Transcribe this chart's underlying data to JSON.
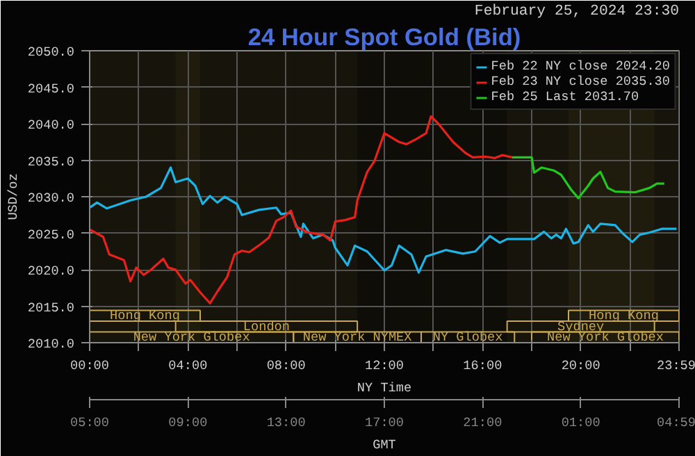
{
  "chart_data": {
    "type": "line",
    "title": "24 Hour Spot Gold (Bid)",
    "subtitle": "February 25, 2024 23:30",
    "xlabel": "NY Time",
    "x2label": "GMT",
    "ylabel": "USD/oz",
    "xlim": [
      0,
      24
    ],
    "xticks": [
      {
        "value": 0,
        "label": "00:00"
      },
      {
        "value": 2,
        "label": null
      },
      {
        "value": 4,
        "label": "04:00"
      },
      {
        "value": 6,
        "label": null
      },
      {
        "value": 8,
        "label": "08:00"
      },
      {
        "value": 10,
        "label": null
      },
      {
        "value": 12,
        "label": "12:00"
      },
      {
        "value": 14,
        "label": null
      },
      {
        "value": 16,
        "label": "16:00"
      },
      {
        "value": 18,
        "label": null
      },
      {
        "value": 20,
        "label": "20:00"
      },
      {
        "value": 22,
        "label": null
      },
      {
        "value": 23.983,
        "label": "23:59"
      }
    ],
    "x2lim": [
      "2024-02-25T05:00",
      "2024-02-26T05:00"
    ],
    "x2ticks": [
      {
        "value": "2024-02-25T05:00",
        "label": "05:00"
      },
      {
        "value": "2024-02-25T09:00",
        "label": "09:00"
      },
      {
        "value": "2024-02-25T13:00",
        "label": "13:00"
      },
      {
        "value": "2024-02-25T17:00",
        "label": "17:00"
      },
      {
        "value": "2024-02-25T21:00",
        "label": "21:00"
      },
      {
        "value": "2024-02-26T01:00",
        "label": "01:00"
      },
      {
        "value": "2024-02-26T04:59",
        "label": "04:59"
      }
    ],
    "ylim": [
      2010,
      2050
    ],
    "yticks": [
      {
        "value": 2010,
        "label": "2010.0"
      },
      {
        "value": 2015,
        "label": "2015.0"
      },
      {
        "value": 2020,
        "label": "2020.0"
      },
      {
        "value": 2025,
        "label": "2025.0"
      },
      {
        "value": 2030,
        "label": "2030.0"
      },
      {
        "value": 2035,
        "label": "2035.0"
      },
      {
        "value": 2040,
        "label": "2040.0"
      },
      {
        "value": 2045,
        "label": "2045.0"
      },
      {
        "value": 2050,
        "label": "2050.0"
      }
    ],
    "grid": true,
    "legend": "top right",
    "marker": "none",
    "line_style": "solid",
    "series": [
      {
        "name": "Feb 22 NY close 2024.20",
        "color": "#1eb4e6",
        "x": [
          0,
          0.3,
          0.7,
          1.66,
          2.3,
          2.9,
          3.3,
          3.5,
          4.0,
          4.3,
          4.6,
          4.9,
          5.2,
          5.5,
          6.0,
          6.2,
          6.9,
          7.6,
          7.8,
          8.2,
          8.6,
          8.7,
          9.1,
          9.5,
          9.9,
          10.0,
          10.5,
          10.8,
          11.3,
          12.0,
          12.3,
          12.6,
          13.1,
          13.4,
          13.7,
          14.5,
          15.2,
          15.7,
          16.3,
          16.7,
          17.0,
          18.1,
          18.5,
          18.8,
          19.0,
          19.2,
          19.4,
          19.7,
          19.9,
          20.3,
          20.5,
          20.8,
          21.4,
          21.7,
          22.1,
          22.4,
          22.8,
          23.3,
          23.9
        ],
        "values": [
          2028.5,
          2029.2,
          2028.4,
          2029.5,
          2030.0,
          2031.2,
          2034.0,
          2032.0,
          2032.5,
          2031.5,
          2029.0,
          2030.1,
          2029.2,
          2030.0,
          2029.0,
          2027.5,
          2028.2,
          2028.5,
          2027.6,
          2027.8,
          2024.5,
          2026.3,
          2024.3,
          2024.8,
          2024.0,
          2023.0,
          2020.6,
          2023.3,
          2022.5,
          2019.9,
          2020.6,
          2023.3,
          2022.1,
          2019.6,
          2021.8,
          2022.7,
          2022.2,
          2022.5,
          2024.6,
          2023.7,
          2024.2,
          2024.2,
          2025.2,
          2024.3,
          2024.8,
          2024.3,
          2025.6,
          2023.6,
          2023.8,
          2026.1,
          2025.2,
          2026.3,
          2026.1,
          2025.0,
          2023.8,
          2024.8,
          2025.1,
          2025.6,
          2025.6
        ]
      },
      {
        "name": "Feb 23 NY close 2035.30",
        "color": "#e8221a",
        "x": [
          0,
          0.55,
          0.8,
          1.4,
          1.66,
          1.9,
          2.2,
          2.5,
          3.0,
          3.2,
          3.5,
          3.9,
          4.1,
          4.5,
          4.9,
          5.2,
          5.6,
          5.9,
          6.2,
          6.5,
          7.0,
          7.3,
          7.6,
          7.9,
          8.2,
          8.4,
          8.9,
          9.5,
          9.8,
          10.0,
          10.4,
          10.8,
          10.9,
          11.3,
          11.6,
          12.0,
          12.6,
          12.9,
          13.3,
          13.7,
          13.9,
          14.2,
          14.8,
          15.3,
          15.6,
          16.1,
          16.5,
          16.8,
          17.2
        ],
        "values": [
          2025.5,
          2024.5,
          2022.1,
          2021.3,
          2018.4,
          2020.3,
          2019.3,
          2020.0,
          2021.5,
          2020.3,
          2020.0,
          2018.1,
          2018.6,
          2016.9,
          2015.4,
          2017.0,
          2019.0,
          2022.1,
          2022.6,
          2022.4,
          2023.6,
          2024.4,
          2026.7,
          2027.2,
          2028.1,
          2025.9,
          2025.1,
          2024.8,
          2024.0,
          2026.6,
          2026.8,
          2027.2,
          2029.5,
          2033.4,
          2034.9,
          2038.7,
          2037.5,
          2037.2,
          2037.9,
          2038.7,
          2041.0,
          2040.0,
          2037.5,
          2036.0,
          2035.4,
          2035.5,
          2035.3,
          2035.7,
          2035.4
        ]
      },
      {
        "name": "Feb 25 Last 2031.70",
        "color": "#22c81e",
        "x": [
          17.2,
          18.0,
          18.1,
          18.4,
          18.9,
          19.2,
          19.6,
          19.9,
          20.3,
          20.5,
          20.8,
          21.1,
          21.4,
          22.2,
          22.8,
          23.1,
          23.4
        ],
        "values": [
          2035.4,
          2035.4,
          2033.3,
          2034.0,
          2033.6,
          2033.0,
          2031.0,
          2029.8,
          2031.5,
          2032.5,
          2033.4,
          2031.2,
          2030.7,
          2030.6,
          2031.2,
          2031.8,
          2031.8
        ]
      }
    ],
    "bands": [
      {
        "axis": "x",
        "from": 0,
        "to": 8.3,
        "label": "New York Globex",
        "color": "#c8a850"
      },
      {
        "axis": "x",
        "from": 8.3,
        "to": 13.5,
        "label": "New York NYMEX",
        "color": "#c8a850"
      },
      {
        "axis": "x",
        "from": 13.5,
        "to": 17.3,
        "label": "NY Globex",
        "color": "#c8a850"
      },
      {
        "axis": "x",
        "from": 17.3,
        "to": 18.0,
        "color": "#c8a850"
      },
      {
        "axis": "x",
        "from": 18.0,
        "to": 24,
        "label": "New York Globex",
        "color": "#c8a850"
      },
      {
        "axis": "x",
        "from": 3.5,
        "to": 10.9,
        "label": "London",
        "color": "#c8a850"
      },
      {
        "axis": "x",
        "from": 17.0,
        "to": 23.0,
        "label": "Sydney",
        "color": "#c8a850"
      },
      {
        "axis": "x",
        "from": 0,
        "to": 4.5,
        "label": "Hong Kong",
        "color": "#c8a850"
      },
      {
        "axis": "x",
        "from": 19.5,
        "to": 24,
        "label": "Hong Kong",
        "color": "#c8a850"
      }
    ]
  }
}
